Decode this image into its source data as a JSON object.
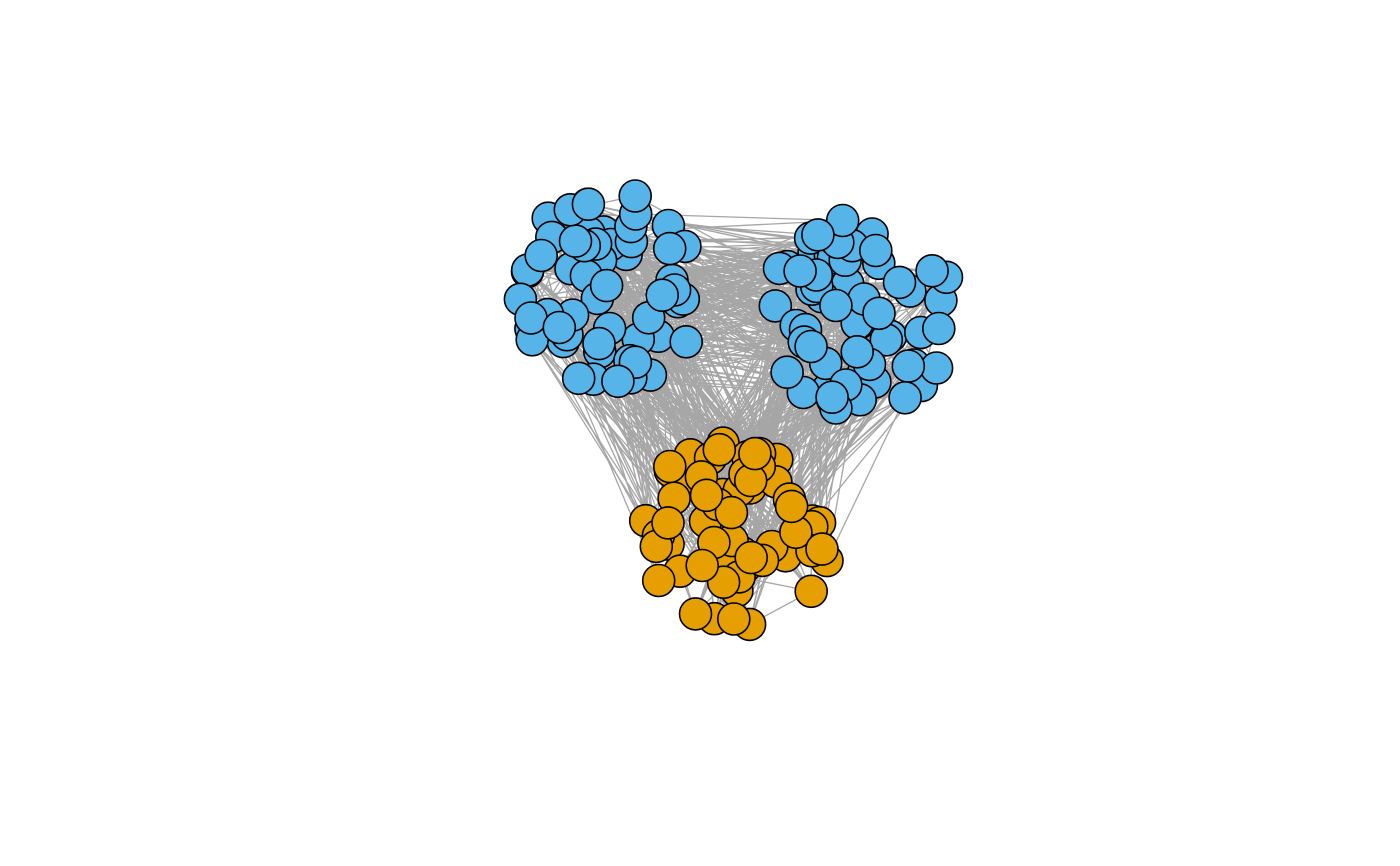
{
  "network": {
    "type": "network",
    "node_count": 180,
    "communities": [
      {
        "id": "A",
        "color": "#56b4e9",
        "node_count": 60
      },
      {
        "id": "B",
        "color": "#56b4e9",
        "node_count": 60
      },
      {
        "id": "C",
        "color": "#e69f00",
        "node_count": 60
      }
    ],
    "edge_color": "#a6a6a6",
    "node_border_color": "#000000",
    "background": "#ffffff"
  }
}
